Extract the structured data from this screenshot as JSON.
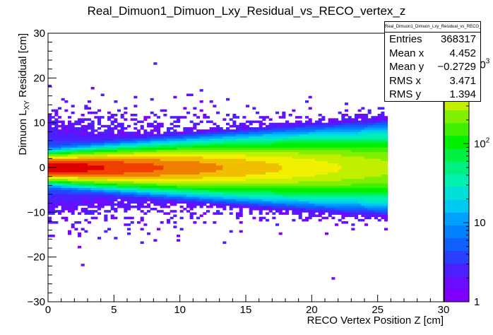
{
  "title": "Real_Dimuon1_Dimuon_Lxy_Residual_vs_RECO_vertex_z",
  "stats": {
    "name": "Real_Dimuon1_Dimuon_Lxy_Residual_vs_RECO_vertex_z",
    "rows": [
      {
        "label": "Entries",
        "value": "368317"
      },
      {
        "label": "Mean x",
        "value": "4.452"
      },
      {
        "label": "Mean y",
        "value": "−0.2729"
      },
      {
        "label": "RMS x",
        "value": "3.471"
      },
      {
        "label": "RMS y",
        "value": "1.394"
      }
    ]
  },
  "chart_data": {
    "type": "heatmap",
    "title": "Real_Dimuon1_Dimuon_Lxy_Residual_vs_RECO_vertex_z",
    "xlabel": "RECO Vertex Position Z [cm]",
    "ylabel": "Dimuon L",
    "ylabel_sub": "XY",
    "ylabel_rest": " Residual [cm]",
    "xlim": [
      0,
      30
    ],
    "ylim": [
      -30,
      30
    ],
    "x_ticks": [
      "0",
      "5",
      "10",
      "15",
      "20",
      "25",
      "30"
    ],
    "y_ticks": [
      "−30",
      "−20",
      "−10",
      "0",
      "10",
      "20",
      "30"
    ],
    "z_scale": "log",
    "z_range": [
      1,
      2500
    ],
    "z_ticks": [
      {
        "label": "1",
        "exp": ""
      },
      {
        "label": "10",
        "exp": ""
      },
      {
        "label": "10",
        "exp": "2"
      },
      {
        "label": "10",
        "exp": "3"
      }
    ],
    "palette": [
      "#8000ff",
      "#6a0dff",
      "#4a20ff",
      "#2a40ff",
      "#1060ff",
      "#0080ff",
      "#00a0ff",
      "#00c8f0",
      "#00e0d8",
      "#00f0b0",
      "#00f080",
      "#00f040",
      "#00f000",
      "#40f000",
      "#80f000",
      "#c0f000",
      "#f0f000",
      "#f0c000",
      "#f08000",
      "#f04000",
      "#e00000"
    ],
    "model": {
      "x_range_of_data": [
        0,
        25.8
      ],
      "y_peak": 0,
      "y_peak_width": 1.4,
      "max_count": 2500,
      "falloff_z_scale": 12,
      "core_sigma_y": 1.2,
      "tail_sigma_y": 5.5,
      "seed": 7
    }
  }
}
